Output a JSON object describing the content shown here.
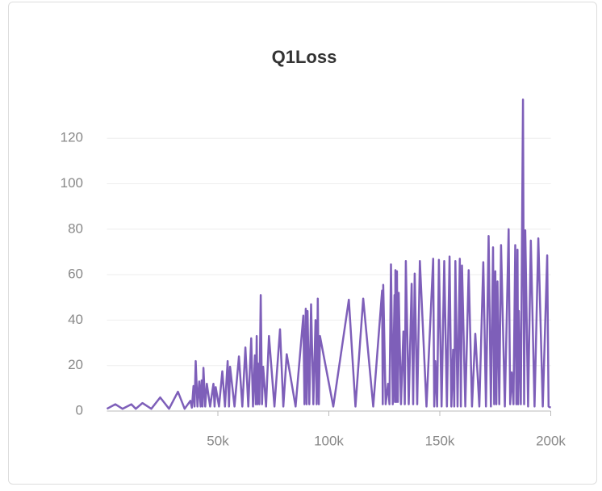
{
  "chart_data": {
    "type": "line",
    "title": "Q1Loss",
    "x": [
      0,
      3800,
      7000,
      11000,
      13000,
      16000,
      20000,
      24000,
      28000,
      32000,
      35000,
      37600,
      38300,
      39000,
      39500,
      40000,
      40800,
      41600,
      42200,
      42700,
      43100,
      43500,
      44300,
      45000,
      46500,
      48000,
      48500,
      49000,
      50500,
      52000,
      53200,
      54400,
      55000,
      55500,
      57500,
      59500,
      61000,
      62400,
      63700,
      65000,
      65800,
      66700,
      67100,
      67500,
      67800,
      68000,
      68700,
      69300,
      69900,
      70400,
      71700,
      73000,
      75500,
      78000,
      79500,
      81000,
      85000,
      88500,
      89000,
      89600,
      90000,
      90400,
      91200,
      92000,
      93000,
      94000,
      94500,
      95000,
      95500,
      96000,
      102000,
      109000,
      112000,
      115500,
      120000,
      124000,
      124300,
      124500,
      125600,
      126700,
      127300,
      128000,
      128800,
      129600,
      129800,
      130000,
      130400,
      130700,
      131100,
      131500,
      132500,
      133600,
      134200,
      134700,
      136000,
      137300,
      138000,
      138700,
      139800,
      141000,
      144000,
      147000,
      147500,
      148000,
      148800,
      149600,
      150800,
      152000,
      153200,
      154400,
      155200,
      156000,
      156500,
      157000,
      158000,
      159000,
      159500,
      160000,
      161500,
      163000,
      164500,
      166000,
      167800,
      169600,
      170800,
      172000,
      173000,
      174000,
      174500,
      175000,
      175500,
      176000,
      176800,
      177600,
      179300,
      181000,
      181700,
      182400,
      183200,
      184000,
      184500,
      185000,
      185300,
      185600,
      186500,
      187500,
      188000,
      188500,
      189800,
      191000,
      192700,
      194400,
      196400,
      198400,
      199000,
      200000
    ],
    "series": [
      {
        "name": "Q1Loss",
        "color": "#7e5fb9",
        "values": [
          1,
          3,
          1,
          3,
          1,
          3.5,
          1,
          6,
          1,
          8.5,
          1,
          4.5,
          1.5,
          11,
          2,
          22,
          2,
          13,
          2,
          13.5,
          2,
          19,
          2,
          12,
          2,
          12,
          2,
          10.5,
          2,
          17.5,
          2,
          22,
          2,
          19.5,
          2,
          24,
          2,
          28,
          2,
          32,
          2,
          24.5,
          3,
          33,
          3,
          21,
          3,
          51,
          3,
          19.5,
          2,
          33,
          2,
          36,
          2,
          25,
          2,
          42,
          3,
          45,
          3,
          44,
          3,
          47,
          3,
          40,
          3,
          49.5,
          3,
          33,
          2,
          49,
          2,
          49.5,
          2,
          53,
          3,
          55.5,
          3,
          12,
          3,
          64.5,
          3,
          51,
          4,
          62,
          4,
          61.5,
          4,
          52,
          3,
          35,
          3,
          66,
          3,
          56,
          3,
          60.5,
          3,
          66,
          2,
          67,
          2,
          22,
          2,
          66.5,
          2,
          66,
          2,
          68,
          2,
          27,
          2,
          66,
          2,
          67,
          2,
          64,
          2,
          62,
          2,
          34,
          2,
          65.5,
          2,
          77,
          2,
          72,
          3,
          61.5,
          3,
          57,
          3,
          73,
          2,
          80,
          3,
          17,
          3,
          73,
          3,
          71,
          3,
          44,
          3,
          137,
          3,
          79.5,
          2,
          75,
          2,
          76,
          2,
          68.5,
          2,
          1.5
        ]
      }
    ],
    "xlim": [
      0,
      200000
    ],
    "xticks": [
      {
        "value": 50000,
        "label": "50k"
      },
      {
        "value": 100000,
        "label": "100k"
      },
      {
        "value": 150000,
        "label": "150k"
      },
      {
        "value": 200000,
        "label": "200k"
      }
    ],
    "ylim": [
      0,
      140
    ],
    "yticks": [
      0,
      20,
      40,
      60,
      80,
      100,
      120
    ],
    "grid": true
  }
}
